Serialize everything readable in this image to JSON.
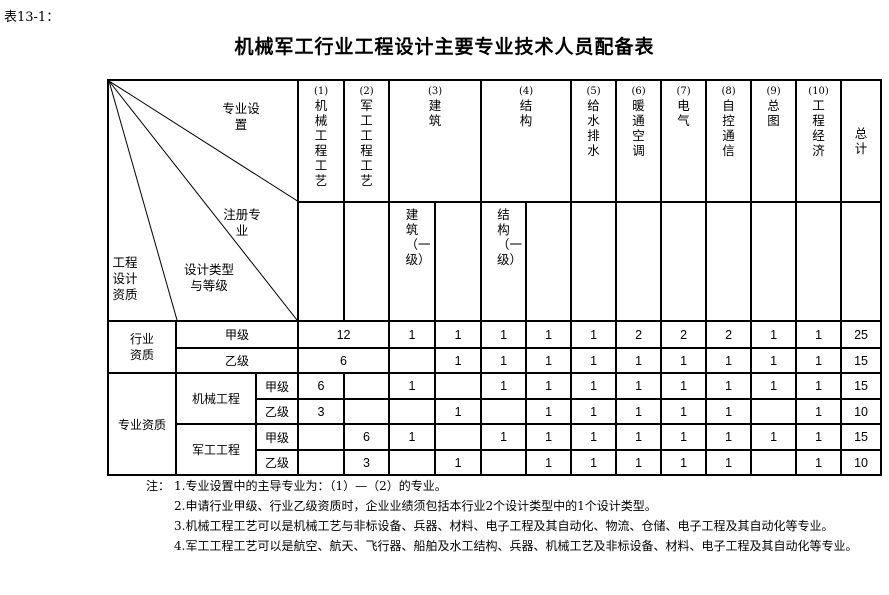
{
  "caption": "表13-1：",
  "title": "机械军工行业工程设计主要专业技术人员配备表",
  "corner": {
    "specialty_setting": "专业设置",
    "registered_specialty": "注册专业",
    "design_type_grade": "设计类型与等级",
    "qualification": "工程设计资质"
  },
  "columns": [
    {
      "index": "(1)",
      "label": "机械工程工艺",
      "sub": [
        ""
      ]
    },
    {
      "index": "(2)",
      "label": "军工工程工艺",
      "sub": [
        ""
      ]
    },
    {
      "index": "(3)",
      "label": "建筑",
      "sub": [
        "建筑（一级）",
        ""
      ]
    },
    {
      "index": "(4)",
      "label": "结构",
      "sub": [
        "结构（一级）",
        ""
      ]
    },
    {
      "index": "(5)",
      "label": "给水排水",
      "sub": [
        ""
      ]
    },
    {
      "index": "(6)",
      "label": "暖通空调",
      "sub": [
        ""
      ]
    },
    {
      "index": "(7)",
      "label": "电气",
      "sub": [
        ""
      ]
    },
    {
      "index": "(8)",
      "label": "自控通信",
      "sub": [
        ""
      ]
    },
    {
      "index": "(9)",
      "label": "总图",
      "sub": [
        ""
      ]
    },
    {
      "index": "(10)",
      "label": "工程经济",
      "sub": [
        ""
      ]
    }
  ],
  "total_label": "总计",
  "industry": {
    "label": "行业资质",
    "rows": [
      {
        "grade": "甲级",
        "core": "12",
        "values": [
          "1",
          "1",
          "1",
          "1",
          "1",
          "2",
          "2",
          "2",
          "1",
          "1"
        ],
        "total": "25"
      },
      {
        "grade": "乙级",
        "core": "6",
        "values": [
          "",
          "1",
          "1",
          "1",
          "1",
          "1",
          "1",
          "1",
          "1",
          "1"
        ],
        "total": "15"
      }
    ]
  },
  "specialty": {
    "label": "专业资质",
    "groups": [
      {
        "name": "机械工程",
        "rows": [
          {
            "grade": "甲级",
            "values": [
              "6",
              "",
              "1",
              "",
              "1",
              "1",
              "1",
              "1",
              "1",
              "1",
              "1",
              "1"
            ],
            "total": "15"
          },
          {
            "grade": "乙级",
            "values": [
              "3",
              "",
              "",
              "1",
              "",
              "1",
              "1",
              "1",
              "1",
              "1",
              "",
              "1"
            ],
            "total": "10"
          }
        ]
      },
      {
        "name": "军工工程",
        "rows": [
          {
            "grade": "甲级",
            "values": [
              "",
              "6",
              "1",
              "",
              "1",
              "1",
              "1",
              "1",
              "1",
              "1",
              "1",
              "1"
            ],
            "total": "15"
          },
          {
            "grade": "乙级",
            "values": [
              "",
              "3",
              "",
              "1",
              "",
              "1",
              "1",
              "1",
              "1",
              "1",
              "",
              "1"
            ],
            "total": "10"
          }
        ]
      }
    ]
  },
  "notes": {
    "prefix": "注：",
    "items": [
      "1.专业设置中的主导专业为：（1）—（2）的专业。",
      "2.申请行业甲级、行业乙级资质时，企业业绩须包括本行业2个设计类型中的1个设计类型。",
      "3.机械工程工艺可以是机械工艺与非标设备、兵器、材料、电子工程及其自动化、物流、仓储、电子工程及其自动化等专业。",
      "4.军工工程工艺可以是航空、航天、飞行器、船舶及水工结构、兵器、机械工艺及非标设备、材料、电子工程及其自动化等专业。"
    ]
  }
}
